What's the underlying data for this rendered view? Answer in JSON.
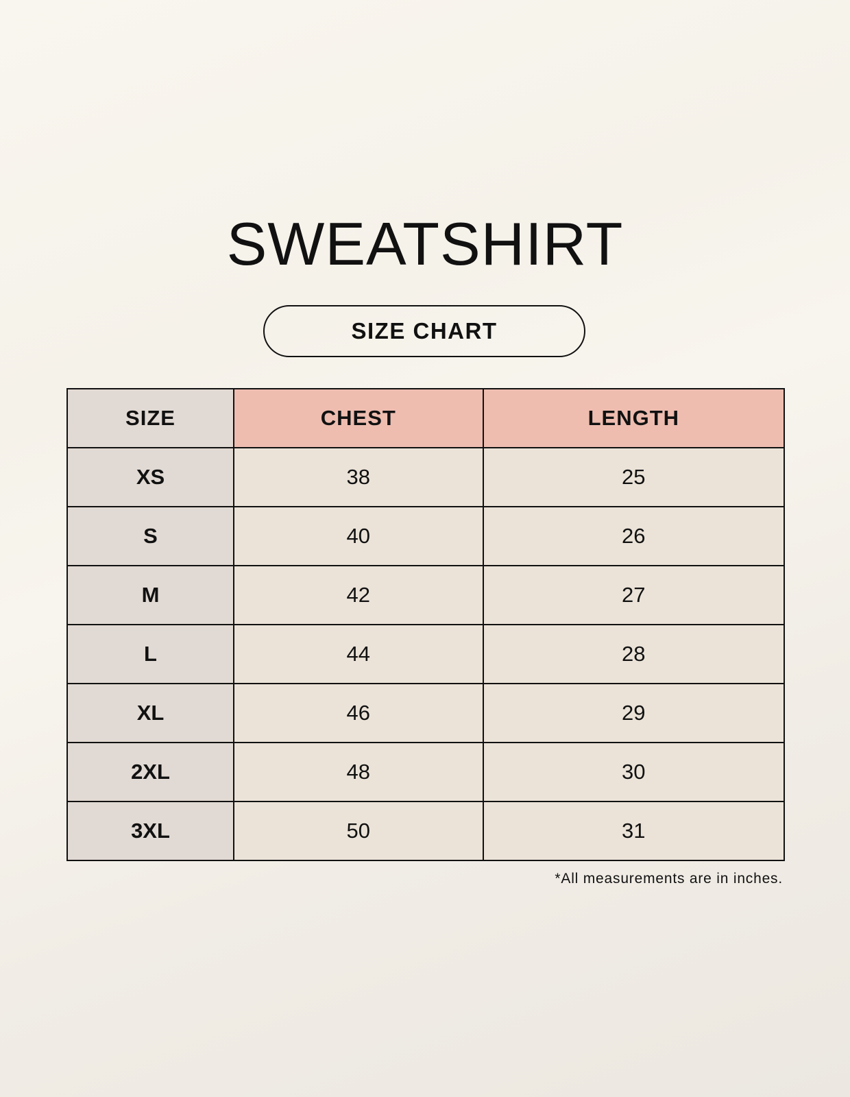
{
  "title": "SWEATSHIRT",
  "subtitle": "SIZE CHART",
  "table": {
    "headers": [
      "SIZE",
      "CHEST",
      "LENGTH"
    ],
    "rows": [
      [
        "XS",
        "38",
        "25"
      ],
      [
        "S",
        "40",
        "26"
      ],
      [
        "M",
        "42",
        "27"
      ],
      [
        "L",
        "44",
        "28"
      ],
      [
        "XL",
        "46",
        "29"
      ],
      [
        "2XL",
        "48",
        "30"
      ],
      [
        "3XL",
        "50",
        "31"
      ]
    ]
  },
  "footnote": "*All measurements are in inches.",
  "colors": {
    "size_column": "#e1d9d3",
    "header_accent": "#eebdb0",
    "cell": "#ebe3d8"
  }
}
